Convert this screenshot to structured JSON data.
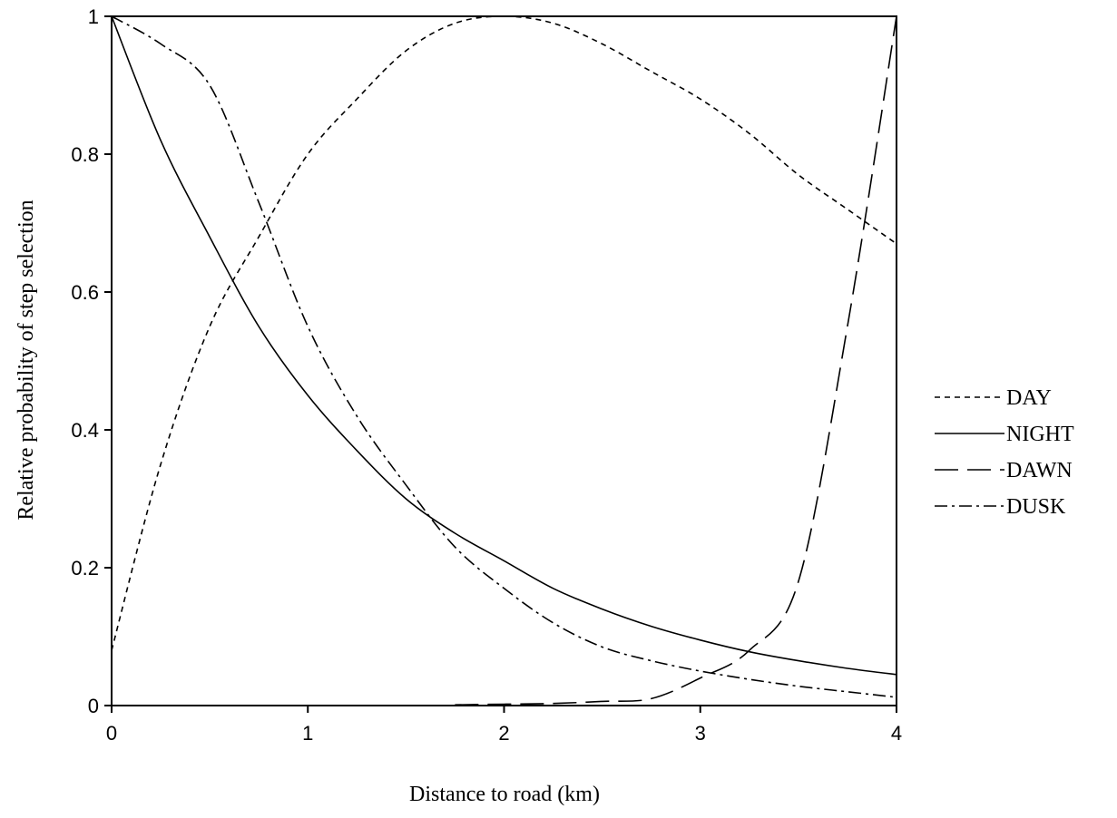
{
  "chart_data": {
    "type": "line",
    "title": "",
    "xlabel": "Distance to road (km)",
    "ylabel": "Relative probability of step selection",
    "xlim": [
      0,
      4
    ],
    "ylim": [
      0,
      1
    ],
    "x_ticks": [
      "0",
      "1",
      "2",
      "3",
      "4"
    ],
    "y_ticks": [
      "0",
      "0.2",
      "0.4",
      "0.6",
      "0.8",
      "1"
    ],
    "grid": false,
    "legend_position": "right",
    "x": [
      0,
      0.25,
      0.5,
      0.75,
      1,
      1.25,
      1.5,
      1.75,
      2,
      2.25,
      2.5,
      2.75,
      3,
      3.25,
      3.5,
      3.75,
      4
    ],
    "series": [
      {
        "name": "DAY",
        "style": "dotted",
        "values": [
          0.08,
          0.35,
          0.55,
          0.68,
          0.8,
          0.88,
          0.95,
          0.99,
          1.0,
          0.99,
          0.96,
          0.92,
          0.88,
          0.83,
          0.77,
          0.72,
          0.67
        ]
      },
      {
        "name": "NIGHT",
        "style": "solid",
        "values": [
          1.0,
          0.82,
          0.68,
          0.55,
          0.45,
          0.37,
          0.3,
          0.25,
          0.21,
          0.17,
          0.14,
          0.115,
          0.095,
          0.078,
          0.065,
          0.054,
          0.045
        ]
      },
      {
        "name": "DAWN",
        "style": "long-dash",
        "values": [
          null,
          null,
          null,
          null,
          null,
          null,
          null,
          0.001,
          0.002,
          0.003,
          0.006,
          0.01,
          0.04,
          0.08,
          0.18,
          0.55,
          1.0
        ]
      },
      {
        "name": "DUSK",
        "style": "dash-dot",
        "values": [
          1.0,
          0.96,
          0.9,
          0.73,
          0.55,
          0.42,
          0.32,
          0.23,
          0.17,
          0.12,
          0.085,
          0.065,
          0.05,
          0.038,
          0.028,
          0.02,
          0.012
        ]
      }
    ]
  }
}
